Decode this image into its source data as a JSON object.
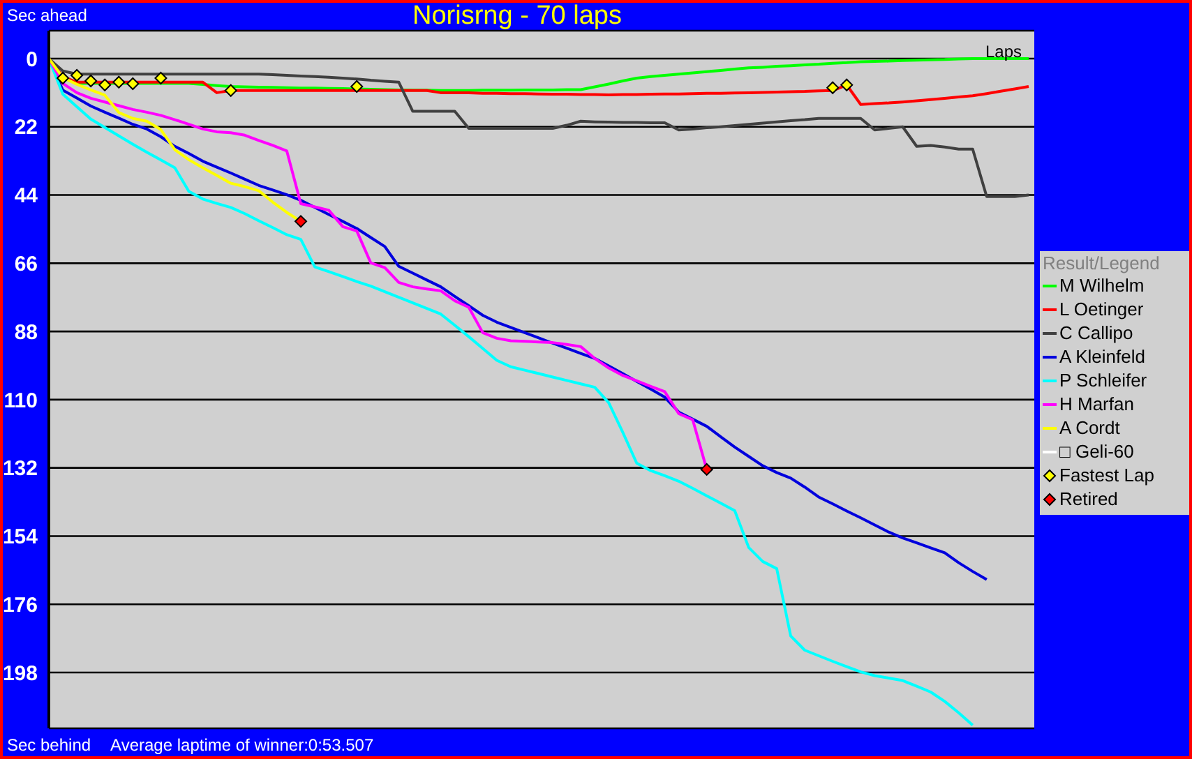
{
  "chart_data": {
    "type": "line",
    "title": "Norisrng - 70 laps",
    "ylabel": "Sec ahead",
    "xlabel": "Laps",
    "legend_title": "Result/Legend",
    "annotations": [
      "Sec behind",
      "Average laptime of winner:0:53.507"
    ],
    "categories": [
      null,
      null,
      null,
      null,
      null,
      null,
      null,
      null,
      null,
      null,
      null,
      null,
      null,
      null,
      null,
      null,
      null,
      null,
      null,
      null,
      null,
      null,
      null,
      null,
      null,
      null,
      null,
      null,
      null,
      null,
      null,
      null,
      null,
      null,
      null,
      null,
      null,
      null,
      null,
      null,
      null,
      null,
      null,
      null,
      null,
      null,
      null,
      null,
      null,
      null,
      null,
      null,
      null,
      null,
      null,
      null,
      null,
      null,
      null,
      null,
      null,
      null,
      null,
      null,
      null,
      null,
      null,
      null,
      null,
      null,
      null
    ],
    "ylim": [
      216,
      -9
    ],
    "yticks": [
      0,
      22,
      44,
      66,
      88,
      110,
      132,
      154,
      176,
      198
    ],
    "grid": "y",
    "legend": "right",
    "marker": "none",
    "line_style": "solid",
    "series": [
      {
        "name": "M Wilhelm",
        "color": "#00ff00",
        "values": [
          0,
          5.8,
          8,
          8,
          8,
          8,
          8,
          8,
          8,
          8,
          8,
          8.3,
          8.7,
          9,
          9.1,
          9.2,
          9.3,
          9.4,
          9.5,
          9.5,
          9.6,
          9.7,
          9.8,
          9.9,
          10,
          10.1,
          10.2,
          10.2,
          10.3,
          10.3,
          10.3,
          10.2,
          10.2,
          10.2,
          10.1,
          10.1,
          10.1,
          10,
          10,
          9.1,
          8.2,
          7.2,
          6.3,
          5.8,
          5.4,
          5,
          4.6,
          4.2,
          3.8,
          3.4,
          3,
          2.8,
          2.5,
          2.3,
          2,
          1.8,
          1.5,
          1.3,
          1,
          0.9,
          0.8,
          0.6,
          0.5,
          0.4,
          0.3,
          0.1,
          0,
          0,
          0,
          0,
          0
        ]
      },
      {
        "name": "L Oetinger",
        "color": "#ff0000",
        "values": [
          0,
          5.8,
          7.6,
          7.6,
          7.6,
          7.6,
          7.6,
          7.6,
          7.6,
          7.6,
          7.6,
          7.6,
          11,
          10.3,
          10.3,
          10.3,
          10.3,
          10.3,
          10.3,
          10.3,
          10.3,
          10.3,
          10.3,
          10.3,
          10.3,
          10.3,
          10.3,
          10.3,
          11,
          11,
          11,
          11.2,
          11.2,
          11.3,
          11.3,
          11.4,
          11.5,
          11.5,
          11.6,
          11.6,
          11.7,
          11.6,
          11.6,
          11.5,
          11.4,
          11.4,
          11.3,
          11.2,
          11.2,
          11.1,
          11,
          10.9,
          10.8,
          10.7,
          10.6,
          10.4,
          10.3,
          8.5,
          14.8,
          14.5,
          14.3,
          14,
          13.6,
          13.2,
          12.8,
          12.4,
          12,
          11.3,
          10.5,
          9.8,
          9
        ]
      },
      {
        "name": "C Callipo",
        "color": "#404040",
        "values": [
          0,
          4,
          5,
          5,
          5,
          5,
          5,
          5,
          5,
          5,
          5,
          5,
          5,
          5,
          5,
          5,
          5.2,
          5.4,
          5.6,
          5.8,
          6,
          6.3,
          6.6,
          7,
          7.3,
          7.6,
          17,
          17,
          17,
          17,
          22.5,
          22.5,
          22.5,
          22.5,
          22.5,
          22.5,
          22.5,
          21.5,
          20.2,
          20.4,
          20.5,
          20.6,
          20.6,
          20.7,
          20.7,
          23,
          22.7,
          22.3,
          22,
          21.6,
          21.2,
          20.8,
          20.4,
          20,
          19.7,
          19.3,
          19.3,
          19.3,
          19.3,
          23,
          22.5,
          22,
          28.3,
          28,
          28.5,
          29.2,
          29.2,
          44.5,
          44.5,
          44.5,
          44
        ]
      },
      {
        "name": "A Kleinfeld",
        "color": "#0000dd",
        "values": [
          0,
          10.2,
          12.7,
          15.3,
          17.3,
          19.2,
          21.2,
          22.7,
          25.2,
          28.3,
          30.6,
          33.1,
          35,
          36.9,
          38.9,
          40.9,
          42.4,
          43.9,
          45.7,
          48,
          50.3,
          52.5,
          54.8,
          57.7,
          60.6,
          67,
          69.2,
          71.4,
          73.6,
          76.7,
          79.7,
          82.8,
          85,
          86.7,
          88.4,
          90.1,
          91.8,
          93.4,
          95.1,
          96.7,
          99.1,
          101.6,
          104.1,
          106.6,
          109.2,
          114,
          116.3,
          118.6,
          122,
          125.3,
          128.3,
          131.3,
          133.5,
          135.3,
          138.2,
          141.4,
          143.6,
          145.9,
          148.1,
          150.4,
          152.7,
          154.6,
          156.2,
          157.8,
          159.4,
          162.6,
          165.4,
          168,
          null,
          null,
          null
        ]
      },
      {
        "name": "P Schleifer",
        "color": "#00ffff",
        "values": [
          0,
          11.5,
          15.5,
          19.5,
          22.2,
          24.9,
          27.6,
          30.2,
          32.7,
          35.2,
          42.8,
          45.3,
          46.7,
          48,
          50,
          52.3,
          54.5,
          56.8,
          58.3,
          67.2,
          68.7,
          70.3,
          71.9,
          73.4,
          75.2,
          77,
          78.8,
          80.6,
          82.4,
          86,
          89.7,
          93.5,
          97.3,
          99.4,
          100.5,
          101.6,
          102.7,
          103.8,
          104.9,
          106,
          111,
          120.5,
          130.5,
          132.9,
          134.5,
          136.3,
          138.6,
          141,
          143.4,
          145.8,
          157.7,
          162.2,
          164.5,
          186.2,
          190.8,
          192.6,
          194.4,
          196.1,
          197.8,
          199,
          199.8,
          200.6,
          202.4,
          204.3,
          207.3,
          211,
          215,
          null,
          null,
          null,
          null
        ]
      },
      {
        "name": "H Marfan",
        "color": "#ff00ff",
        "values": [
          0,
          8,
          11,
          12.8,
          14,
          15.2,
          16.4,
          17.3,
          18.3,
          19.7,
          21.2,
          22.7,
          23.6,
          23.9,
          24.7,
          26.4,
          28,
          29.8,
          46.8,
          47.8,
          48.9,
          54.2,
          55.6,
          65.9,
          67.4,
          72.2,
          73.6,
          74.3,
          74.9,
          78.1,
          80.2,
          88.4,
          90.2,
          91,
          91.2,
          91.4,
          91.6,
          92.2,
          92.9,
          96.7,
          99.8,
          102.2,
          103.9,
          105.7,
          107.4,
          114.5,
          116.5,
          132.5,
          null,
          null,
          null,
          null,
          null,
          null,
          null,
          null,
          null,
          null,
          null,
          null,
          null,
          null,
          null,
          null,
          null,
          null,
          null,
          null,
          null,
          null,
          null
        ]
      },
      {
        "name": "A Cordt",
        "color": "#ffff00",
        "values": [
          0,
          6.1,
          8.3,
          10.1,
          11.8,
          17.4,
          19.3,
          20.2,
          22.9,
          29.4,
          32.6,
          35.2,
          37.7,
          40.2,
          41.3,
          42.6,
          46.3,
          49.6,
          52.5,
          null,
          null,
          null,
          null,
          null,
          null,
          null,
          null,
          null,
          null,
          null,
          null,
          null,
          null,
          null,
          null,
          null,
          null,
          null,
          null,
          null,
          null,
          null,
          null,
          null,
          null,
          null,
          null,
          null,
          null,
          null,
          null,
          null,
          null,
          null,
          null,
          null,
          null,
          null,
          null,
          null,
          null,
          null,
          null,
          null,
          null,
          null,
          null,
          null,
          null,
          null,
          null
        ]
      },
      {
        "name": "□ Geli-60",
        "color": "#ffffff",
        "values": [
          null,
          null,
          null,
          null,
          null,
          null,
          null,
          null,
          null,
          null,
          null,
          null,
          null,
          null,
          null,
          null,
          null,
          null,
          null,
          null,
          null,
          null,
          null,
          null,
          null,
          null,
          null,
          null,
          null,
          null,
          null,
          null,
          null,
          null,
          null,
          null,
          null,
          null,
          null,
          null,
          null,
          null,
          null,
          null,
          null,
          null,
          null,
          null,
          null,
          null,
          null,
          null,
          null,
          null,
          null,
          null,
          null,
          null,
          null,
          null,
          null,
          null,
          null,
          null,
          null,
          null,
          null,
          null,
          null,
          null,
          null
        ]
      },
      {
        "name": "Fastest Lap",
        "type": "scatter",
        "marker": "diamond",
        "color": "#ffff00",
        "values": [
          null,
          6.3,
          5.4,
          7.2,
          8.5,
          7.6,
          8.1,
          null,
          6.3,
          null,
          null,
          null,
          null,
          10.3,
          null,
          null,
          null,
          null,
          null,
          null,
          null,
          null,
          9,
          null,
          null,
          null,
          null,
          null,
          null,
          null,
          null,
          null,
          null,
          null,
          null,
          null,
          null,
          null,
          null,
          null,
          null,
          null,
          null,
          null,
          null,
          null,
          null,
          null,
          null,
          null,
          null,
          null,
          null,
          null,
          null,
          null,
          9.4,
          8.5,
          null,
          null,
          null,
          null,
          null,
          null,
          null,
          null,
          null,
          null,
          null,
          null,
          null
        ]
      },
      {
        "name": "Retired",
        "type": "scatter",
        "marker": "diamond",
        "color": "#ff0000",
        "values": [
          null,
          null,
          null,
          null,
          null,
          null,
          null,
          null,
          null,
          null,
          null,
          null,
          null,
          null,
          null,
          null,
          null,
          null,
          52.5,
          null,
          null,
          null,
          null,
          null,
          null,
          null,
          null,
          null,
          null,
          null,
          null,
          null,
          null,
          null,
          null,
          null,
          null,
          null,
          null,
          null,
          null,
          null,
          null,
          null,
          null,
          null,
          null,
          132.5,
          null,
          null,
          null,
          null,
          null,
          null,
          null,
          null,
          null,
          null,
          null,
          null,
          null,
          null,
          null,
          null,
          null,
          null,
          null,
          null,
          null,
          null,
          null
        ]
      }
    ]
  }
}
